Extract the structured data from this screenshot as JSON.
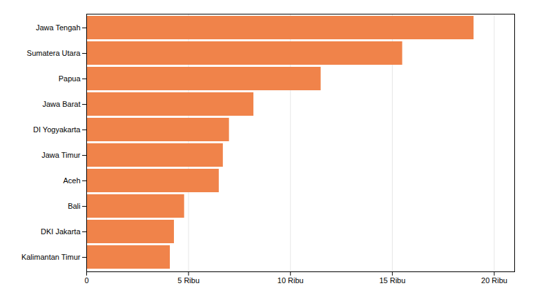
{
  "chart_data": {
    "type": "bar",
    "orientation": "horizontal",
    "categories": [
      "Kalimantan Timur",
      "DKI Jakarta",
      "Bali",
      "Aceh",
      "Jawa Timur",
      "DI Yogyakarta",
      "Jawa Barat",
      "Papua",
      "Sumatera Utara",
      "Jawa Tengah"
    ],
    "values": [
      4100,
      4300,
      4800,
      6500,
      6700,
      7000,
      8200,
      11500,
      15500,
      19000
    ],
    "color": "#f0834a",
    "xlim": [
      0,
      21000
    ],
    "xticks": [
      0,
      {
        "value": 5000,
        "label": "5 Ribu"
      },
      {
        "value": 10000,
        "label": "10 Ribu"
      },
      {
        "value": 15000,
        "label": "15 Ribu"
      },
      {
        "value": 20000,
        "label": "20 Ribu"
      }
    ],
    "grid": true
  }
}
